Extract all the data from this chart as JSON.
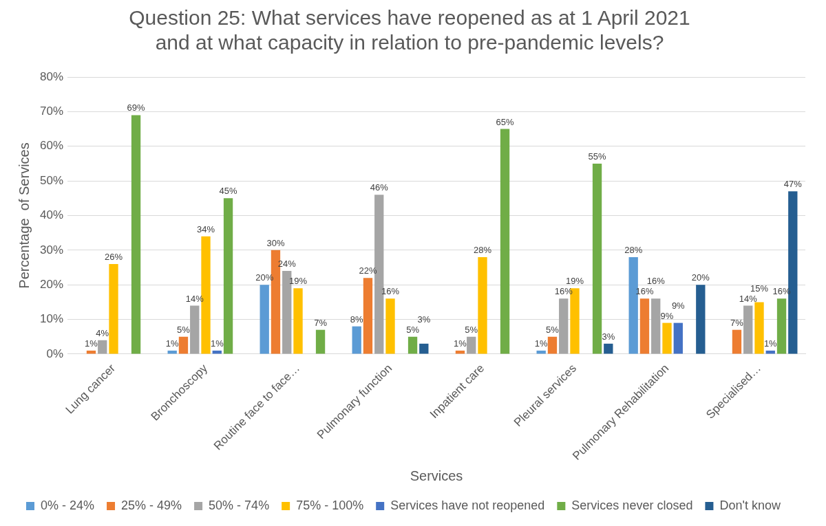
{
  "chart_data": {
    "type": "bar",
    "title": "Question 25: What services have reopened as at 1 April 2021 and at what capacity in relation to pre-pandemic levels?",
    "xlabel": "Services",
    "ylabel": "Percentage  of Services",
    "categories": [
      "Lung cancer",
      "Bronchoscopy",
      "Routine face to face…",
      "Pulmonary function",
      "Inpatient care",
      "Pleural services",
      "Pulmonary Rehabilitation",
      "Specialised…"
    ],
    "series": [
      {
        "name": "0% - 24%",
        "color": "#5b9bd5",
        "values": [
          null,
          1,
          20,
          8,
          null,
          1,
          28,
          null
        ],
        "value_labels": [
          null,
          "1%",
          "20%",
          "8%",
          null,
          "1%",
          "28%",
          null
        ]
      },
      {
        "name": "25% - 49%",
        "color": "#ed7d31",
        "values": [
          1,
          5,
          30,
          22,
          1,
          5,
          16,
          7
        ],
        "value_labels": [
          "1%",
          "5%",
          "30%",
          "22%",
          "1%",
          "5%",
          "16%",
          "7%"
        ]
      },
      {
        "name": "50% - 74%",
        "color": "#a5a5a5",
        "values": [
          4,
          14,
          24,
          46,
          5,
          16,
          16,
          14
        ],
        "value_labels": [
          "4%",
          "14%",
          "24%",
          "46%",
          "5%",
          "16%",
          "16%",
          "14%"
        ]
      },
      {
        "name": "75% - 100%",
        "color": "#ffc000",
        "values": [
          26,
          34,
          19,
          16,
          28,
          19,
          9,
          15
        ],
        "value_labels": [
          "26%",
          "34%",
          "19%",
          "16%",
          "28%",
          "19%",
          "9%",
          "15%"
        ]
      },
      {
        "name": "Services have not reopened",
        "color": "#4472c4",
        "values": [
          null,
          1,
          null,
          null,
          null,
          null,
          9,
          1
        ],
        "value_labels": [
          null,
          "1%",
          null,
          null,
          null,
          null,
          "9%",
          "1%"
        ]
      },
      {
        "name": "Services never closed",
        "color": "#70ad47",
        "values": [
          69,
          45,
          7,
          5,
          65,
          55,
          null,
          16
        ],
        "value_labels": [
          "69%",
          "45%",
          "7%",
          "5%",
          "65%",
          "55%",
          null,
          "16%"
        ]
      },
      {
        "name": "Don't know",
        "color": "#255e91",
        "values": [
          null,
          null,
          null,
          3,
          null,
          3,
          20,
          47
        ],
        "value_labels": [
          null,
          null,
          null,
          "3%",
          null,
          "3%",
          "20%",
          "47%"
        ]
      }
    ],
    "ylim": [
      0,
      80
    ],
    "yticks": [
      {
        "value": 0,
        "label": "0%"
      },
      {
        "value": 10,
        "label": "10%"
      },
      {
        "value": 20,
        "label": "20%"
      },
      {
        "value": 30,
        "label": "30%"
      },
      {
        "value": 40,
        "label": "40%"
      },
      {
        "value": 50,
        "label": "50%"
      },
      {
        "value": 60,
        "label": "60%"
      },
      {
        "value": 70,
        "label": "70%"
      },
      {
        "value": 80,
        "label": "80%"
      }
    ],
    "grid": "y",
    "legend": "bottom"
  }
}
